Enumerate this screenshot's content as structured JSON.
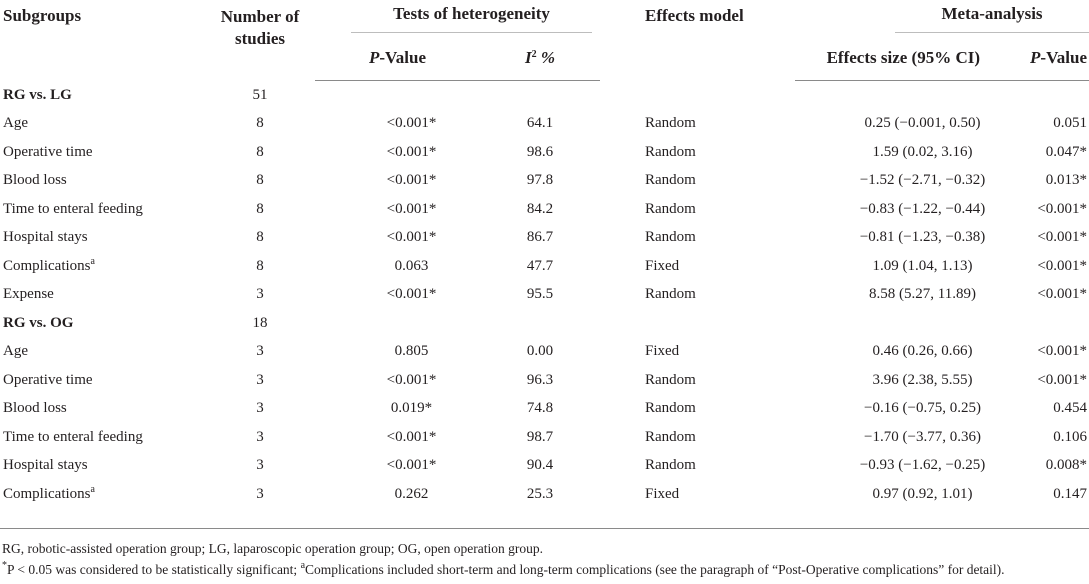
{
  "headers": {
    "subgroups": "Subgroups",
    "number_of_studies_line1": "Number of",
    "number_of_studies_line2": "studies",
    "tests_of_heterogeneity": "Tests of heterogeneity",
    "effects_model": "Effects model",
    "meta_analysis": "Meta-analysis",
    "p_value_italic": "P",
    "p_value_suffix": "-Value",
    "i2_label": "I",
    "i2_sup": "2",
    "i2_suffix": " %",
    "effects_size": "Effects size (95% CI)",
    "meta_p_italic": "P",
    "meta_p_suffix": "-Value"
  },
  "groups": [
    {
      "name": "RG vs. LG",
      "studies": "51",
      "rows": [
        {
          "subgroup": "Age",
          "sup": "",
          "n": "8",
          "p_het": "<0.001*",
          "i2": "64.1",
          "model": "Random",
          "es": "0.25 (−0.001, 0.50)",
          "p_meta": "0.051"
        },
        {
          "subgroup": "Operative time",
          "sup": "",
          "n": "8",
          "p_het": "<0.001*",
          "i2": "98.6",
          "model": "Random",
          "es": "1.59 (0.02, 3.16)",
          "p_meta": "0.047*"
        },
        {
          "subgroup": "Blood loss",
          "sup": "",
          "n": "8",
          "p_het": "<0.001*",
          "i2": "97.8",
          "model": "Random",
          "es": "−1.52 (−2.71, −0.32)",
          "p_meta": "0.013*"
        },
        {
          "subgroup": "Time to enteral feeding",
          "sup": "",
          "n": "8",
          "p_het": "<0.001*",
          "i2": "84.2",
          "model": "Random",
          "es": "−0.83 (−1.22, −0.44)",
          "p_meta": "<0.001*"
        },
        {
          "subgroup": "Hospital stays",
          "sup": "",
          "n": "8",
          "p_het": "<0.001*",
          "i2": "86.7",
          "model": "Random",
          "es": "−0.81 (−1.23, −0.38)",
          "p_meta": "<0.001*"
        },
        {
          "subgroup": "Complications",
          "sup": "a",
          "n": "8",
          "p_het": "0.063",
          "i2": "47.7",
          "model": "Fixed",
          "es": "1.09 (1.04, 1.13)",
          "p_meta": "<0.001*"
        },
        {
          "subgroup": "Expense",
          "sup": "",
          "n": "3",
          "p_het": "<0.001*",
          "i2": "95.5",
          "model": "Random",
          "es": "8.58 (5.27, 11.89)",
          "p_meta": "<0.001*"
        }
      ]
    },
    {
      "name": "RG vs. OG",
      "studies": "18",
      "rows": [
        {
          "subgroup": "Age",
          "sup": "",
          "n": "3",
          "p_het": "0.805",
          "i2": "0.00",
          "model": "Fixed",
          "es": "0.46 (0.26, 0.66)",
          "p_meta": "<0.001*"
        },
        {
          "subgroup": "Operative time",
          "sup": "",
          "n": "3",
          "p_het": "<0.001*",
          "i2": "96.3",
          "model": "Random",
          "es": "3.96 (2.38, 5.55)",
          "p_meta": "<0.001*"
        },
        {
          "subgroup": "Blood loss",
          "sup": "",
          "n": "3",
          "p_het": "0.019*",
          "i2": "74.8",
          "model": "Random",
          "es": "−0.16 (−0.75, 0.25)",
          "p_meta": "0.454"
        },
        {
          "subgroup": "Time to enteral feeding",
          "sup": "",
          "n": "3",
          "p_het": "<0.001*",
          "i2": "98.7",
          "model": "Random",
          "es": "−1.70 (−3.77, 0.36)",
          "p_meta": "0.106"
        },
        {
          "subgroup": "Hospital stays",
          "sup": "",
          "n": "3",
          "p_het": "<0.001*",
          "i2": "90.4",
          "model": "Random",
          "es": "−0.93 (−1.62, −0.25)",
          "p_meta": "0.008*"
        },
        {
          "subgroup": "Complications",
          "sup": "a",
          "n": "3",
          "p_het": "0.262",
          "i2": "25.3",
          "model": "Fixed",
          "es": "0.97 (0.92, 1.01)",
          "p_meta": "0.147"
        }
      ]
    }
  ],
  "footnotes": {
    "abbreviations": "RG, robotic-assisted operation group; LG, laparoscopic operation group; OG, open operation group.",
    "star_sup": "*",
    "star_text": "P < 0.05 was considered to be statistically significant; ",
    "a_sup": "a",
    "a_text": "Complications included short-term and long-term complications (see the paragraph of “Post-Operative complications” for detail)."
  }
}
